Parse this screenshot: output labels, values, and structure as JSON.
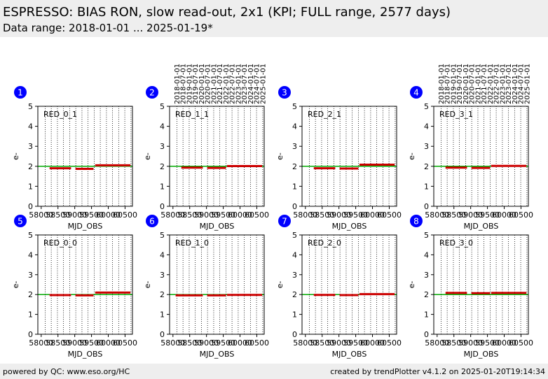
{
  "header": {
    "title": "ESPRESSO: BIAS RON, slow read-out, 2x1 (KPI; FULL range, 2577 days)",
    "subtitle": "Data range: 2018-01-01 ... 2025-01-19*"
  },
  "footer": {
    "left": "powered by QC: www.eso.org/HC",
    "right": "created by trendPlotter v4.1.2 on 2025-01-20T19:14:34"
  },
  "colors": {
    "data": "#cc0000",
    "reference": "#00aa00",
    "badge": "#0000ff",
    "grid": "#000000"
  },
  "chart_data": {
    "type": "scatter",
    "xlabel": "MJD_OBS",
    "ylabel": "e-",
    "xlim": [
      57900,
      60720
    ],
    "ylim": [
      0,
      5
    ],
    "xticks": [
      58000,
      58500,
      59000,
      59500,
      60000,
      60500
    ],
    "xtick_labels": [
      "58000",
      "58500",
      "59000",
      "59500",
      "60000",
      "60500"
    ],
    "yticks": [
      0,
      1,
      2,
      3,
      4,
      5
    ],
    "grid": "vertical dotted",
    "date_ticks": [
      {
        "mjd": 58119,
        "label": "2018-01-01"
      },
      {
        "mjd": 58300,
        "label": "2018-07-01"
      },
      {
        "mjd": 58484,
        "label": "2019-01-01"
      },
      {
        "mjd": 58665,
        "label": "2019-07-01"
      },
      {
        "mjd": 58849,
        "label": "2020-01-01"
      },
      {
        "mjd": 59031,
        "label": "2020-07-01"
      },
      {
        "mjd": 59215,
        "label": "2021-01-01"
      },
      {
        "mjd": 59396,
        "label": "2021-07-01"
      },
      {
        "mjd": 59580,
        "label": "2022-01-01"
      },
      {
        "mjd": 59761,
        "label": "2022-07-01"
      },
      {
        "mjd": 59945,
        "label": "2023-01-01"
      },
      {
        "mjd": 60126,
        "label": "2023-07-01"
      },
      {
        "mjd": 60310,
        "label": "2024-01-01"
      },
      {
        "mjd": 60492,
        "label": "2024-07-01"
      },
      {
        "mjd": 60676,
        "label": "2025-01-01"
      }
    ],
    "date_tick_panels": [
      1,
      3
    ],
    "panels": [
      {
        "number": "1",
        "label": "RED_0_1",
        "reference": 2.0,
        "segments": [
          {
            "from": 58250,
            "to": 58890,
            "value": 1.9
          },
          {
            "from": 59020,
            "to": 59560,
            "value": 1.87
          },
          {
            "from": 59610,
            "to": 60660,
            "value": 2.05
          }
        ]
      },
      {
        "number": "2",
        "label": "RED_1_1",
        "reference": 2.0,
        "segments": [
          {
            "from": 58250,
            "to": 58890,
            "value": 1.93
          },
          {
            "from": 59020,
            "to": 59580,
            "value": 1.92
          },
          {
            "from": 59610,
            "to": 60660,
            "value": 2.01
          }
        ]
      },
      {
        "number": "3",
        "label": "RED_2_1",
        "reference": 2.0,
        "segments": [
          {
            "from": 58250,
            "to": 58890,
            "value": 1.9
          },
          {
            "from": 59020,
            "to": 59580,
            "value": 1.89
          },
          {
            "from": 59610,
            "to": 60660,
            "value": 2.08
          }
        ]
      },
      {
        "number": "4",
        "label": "RED_3_1",
        "reference": 2.0,
        "segments": [
          {
            "from": 58250,
            "to": 58890,
            "value": 1.93
          },
          {
            "from": 59020,
            "to": 59580,
            "value": 1.92
          },
          {
            "from": 59610,
            "to": 60660,
            "value": 2.02
          }
        ]
      },
      {
        "number": "5",
        "label": "RED_0_0",
        "reference": 2.0,
        "segments": [
          {
            "from": 58250,
            "to": 58890,
            "value": 1.97
          },
          {
            "from": 59020,
            "to": 59560,
            "value": 1.96
          },
          {
            "from": 59610,
            "to": 60660,
            "value": 2.1
          }
        ]
      },
      {
        "number": "6",
        "label": "RED_1_0",
        "reference": 2.0,
        "segments": [
          {
            "from": 58080,
            "to": 58890,
            "value": 1.96
          },
          {
            "from": 59020,
            "to": 59580,
            "value": 1.96
          },
          {
            "from": 59610,
            "to": 60660,
            "value": 1.98
          }
        ]
      },
      {
        "number": "7",
        "label": "RED_2_0",
        "reference": 2.0,
        "segments": [
          {
            "from": 58250,
            "to": 58890,
            "value": 1.98
          },
          {
            "from": 59020,
            "to": 59580,
            "value": 1.97
          },
          {
            "from": 59610,
            "to": 60660,
            "value": 2.02
          }
        ]
      },
      {
        "number": "8",
        "label": "RED_3_0",
        "reference": 2.0,
        "segments": [
          {
            "from": 58250,
            "to": 58890,
            "value": 2.08
          },
          {
            "from": 59020,
            "to": 59580,
            "value": 2.07
          },
          {
            "from": 59610,
            "to": 60660,
            "value": 2.08
          }
        ]
      }
    ]
  }
}
